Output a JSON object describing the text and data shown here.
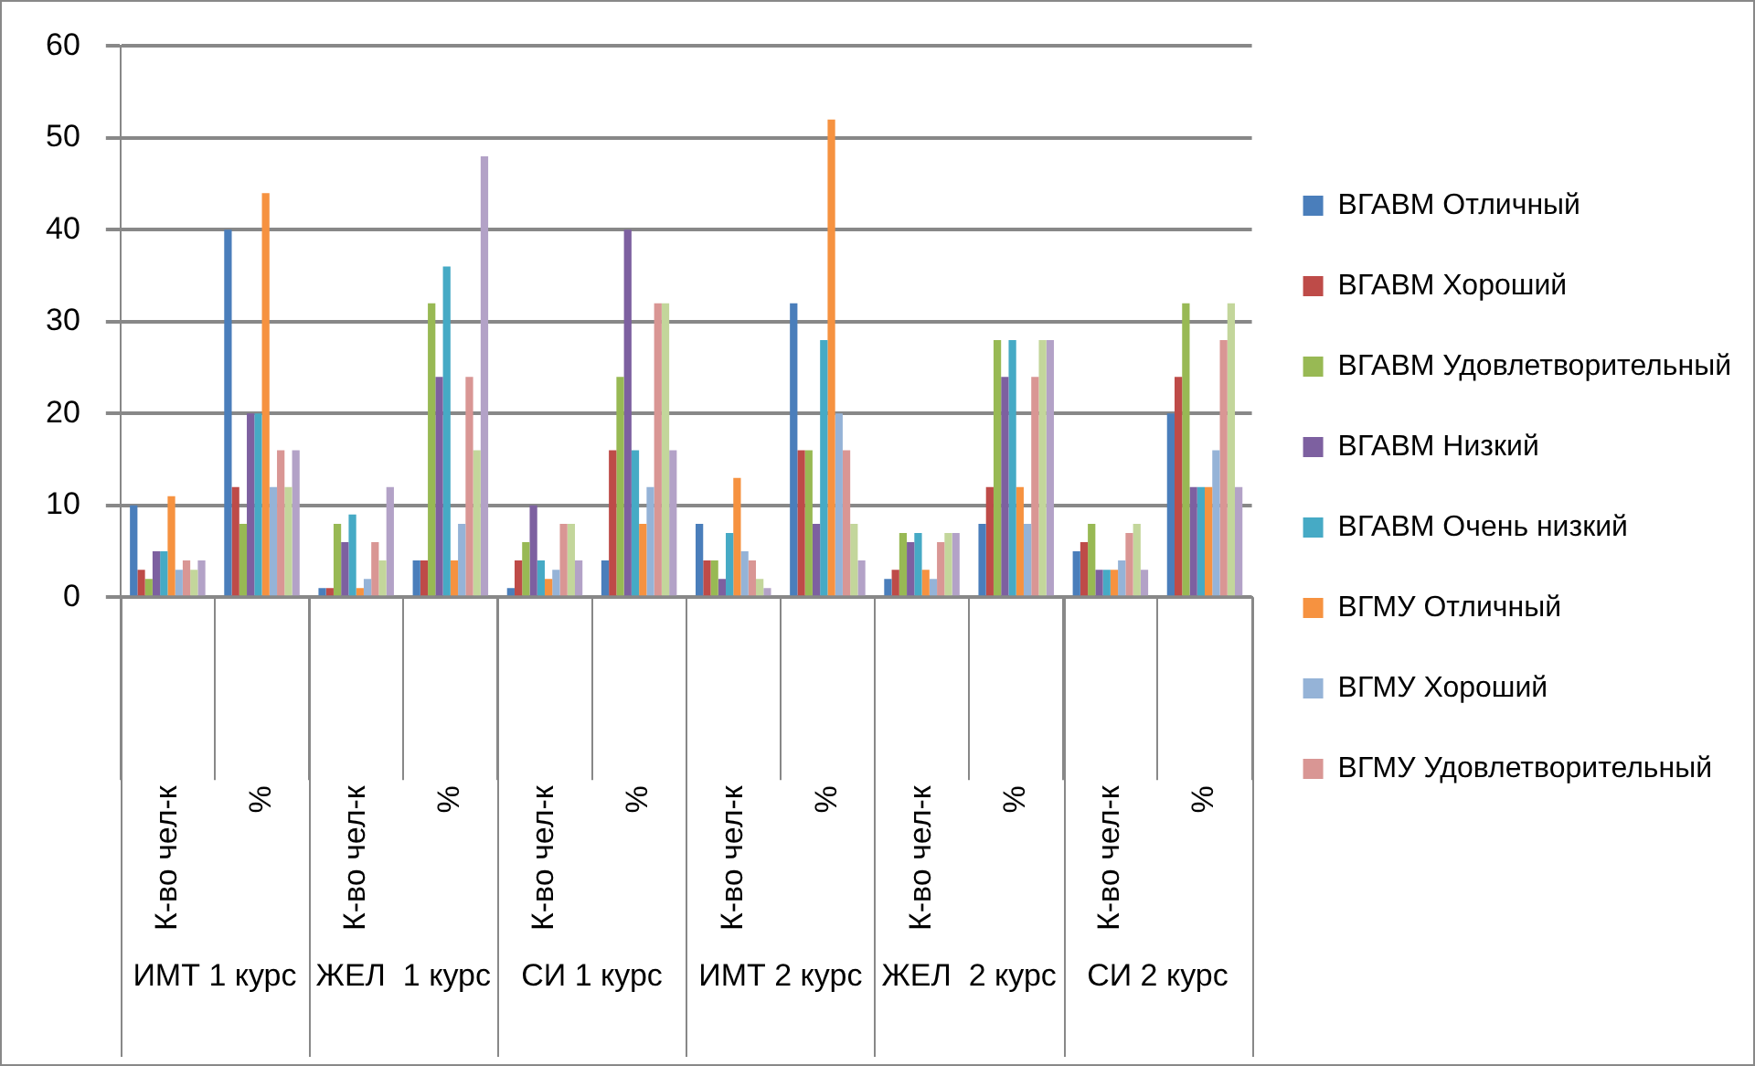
{
  "chart_data": {
    "type": "bar",
    "categories": [
      "К-во чел-к",
      "%",
      "К-во чел-к",
      "%",
      "К-во чел-к",
      "%",
      "К-во чел-к",
      "%",
      "К-во чел-к",
      "%",
      "К-во чел-к",
      "%"
    ],
    "annotations": [
      "ИМТ 1 курс",
      "ЖЕЛ  1 курс",
      "СИ 1 курс",
      "ИМТ 2 курс",
      "ЖЕЛ  2 курс",
      "СИ 2 курс"
    ],
    "series": [
      {
        "name": "ВГАВМ Отличный",
        "color": "#4a7ebb",
        "values": [
          10,
          40,
          1,
          4,
          1,
          4,
          8,
          32,
          2,
          8,
          5,
          20
        ]
      },
      {
        "name": "ВГАВМ Хороший",
        "color": "#be4b48",
        "values": [
          3,
          12,
          1,
          4,
          4,
          16,
          4,
          16,
          3,
          12,
          6,
          24
        ]
      },
      {
        "name": "ВГАВМ Удовлетворительный",
        "color": "#98b954",
        "values": [
          2,
          8,
          8,
          32,
          6,
          24,
          4,
          16,
          7,
          28,
          8,
          32
        ]
      },
      {
        "name": "ВГАВМ Низкий",
        "color": "#7d60a0",
        "values": [
          5,
          20,
          6,
          24,
          10,
          40,
          2,
          8,
          6,
          24,
          3,
          12
        ]
      },
      {
        "name": "ВГАВМ Очень низкий",
        "color": "#46aac5",
        "values": [
          5,
          20,
          9,
          36,
          4,
          16,
          7,
          28,
          7,
          28,
          3,
          12
        ]
      },
      {
        "name": "ВГМУ Отличный",
        "color": "#f69240",
        "values": [
          11,
          44,
          1,
          4,
          2,
          8,
          13,
          52,
          3,
          12,
          3,
          12
        ]
      },
      {
        "name": "ВГМУ Хороший",
        "color": "#95b3d7",
        "values": [
          3,
          12,
          2,
          8,
          3,
          12,
          5,
          20,
          2,
          8,
          4,
          16
        ]
      },
      {
        "name": "ВГМУ Удовлетворительный",
        "color": "#d99694",
        "values": [
          4,
          16,
          6,
          24,
          8,
          32,
          4,
          16,
          6,
          24,
          7,
          28
        ]
      },
      {
        "color": "#c3d69b",
        "values": [
          3,
          12,
          4,
          16,
          8,
          32,
          2,
          8,
          7,
          28,
          8,
          32
        ]
      },
      {
        "color": "#b3a2c7",
        "values": [
          4,
          16,
          12,
          48,
          4,
          16,
          1,
          4,
          7,
          28,
          3,
          12
        ]
      }
    ],
    "ylim": [
      0,
      60
    ],
    "yticks": [
      0,
      10,
      20,
      30,
      40,
      50,
      60
    ],
    "grid": "y",
    "legend": "right"
  }
}
